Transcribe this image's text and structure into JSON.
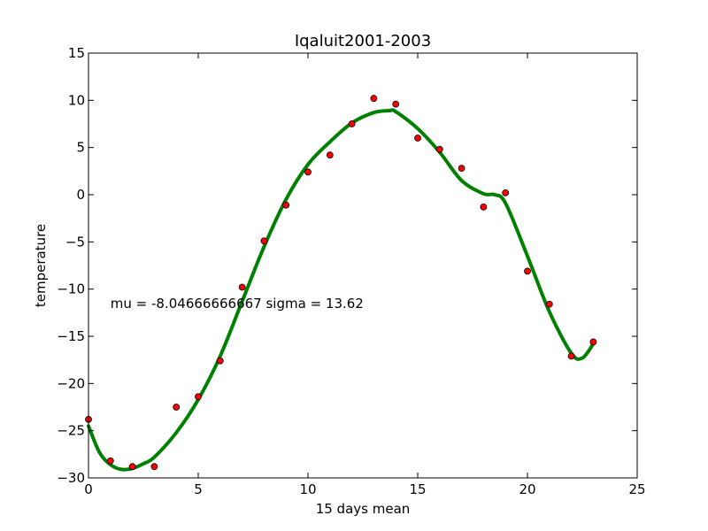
{
  "chart_data": {
    "type": "scatter",
    "title": "Iqaluit2001-2003",
    "xlabel": "15 days mean",
    "ylabel": "temperature",
    "xlim": [
      0,
      25
    ],
    "ylim": [
      -30,
      15
    ],
    "xticks": [
      "0",
      "5",
      "10",
      "15",
      "20",
      "25"
    ],
    "yticks": [
      "−30",
      "−25",
      "−20",
      "−15",
      "−10",
      "−5",
      "0",
      "5",
      "10",
      "15"
    ],
    "grid": false,
    "annotation": "mu = -8.04666666667 sigma = 13.62",
    "annotation_pos": [
      1,
      -12
    ],
    "series": [
      {
        "kind": "points",
        "color": "#ff0000",
        "x": [
          0,
          1,
          2,
          3,
          4,
          5,
          6,
          7,
          8,
          9,
          10,
          11,
          12,
          13,
          14,
          15,
          16,
          17,
          18,
          19,
          20,
          21,
          22,
          23
        ],
        "y": [
          -23.8,
          -28.2,
          -28.8,
          -28.8,
          -22.5,
          -21.4,
          -17.6,
          -9.8,
          -4.9,
          -1.1,
          2.4,
          4.2,
          7.5,
          10.2,
          9.6,
          6.0,
          4.8,
          2.8,
          -1.3,
          0.2,
          -8.1,
          -11.6,
          -17.1,
          -15.6
        ]
      },
      {
        "kind": "curve",
        "color": "#008000",
        "x": [
          0,
          0.5,
          1,
          1.5,
          2,
          2.5,
          3,
          4,
          5,
          6,
          7,
          8,
          9,
          10,
          11,
          12,
          13,
          13.7,
          14,
          15,
          16,
          17,
          18,
          18.5,
          19,
          20,
          21,
          22,
          22.5,
          23
        ],
        "y": [
          -24.5,
          -27.3,
          -28.6,
          -29.1,
          -29.0,
          -28.5,
          -27.8,
          -25.2,
          -21.7,
          -17.1,
          -11.3,
          -5.5,
          -0.5,
          3.2,
          5.6,
          7.6,
          8.7,
          8.9,
          8.8,
          7.0,
          4.5,
          1.5,
          0.1,
          0.0,
          -0.9,
          -6.5,
          -12.4,
          -16.8,
          -17.3,
          -15.8
        ]
      }
    ]
  }
}
